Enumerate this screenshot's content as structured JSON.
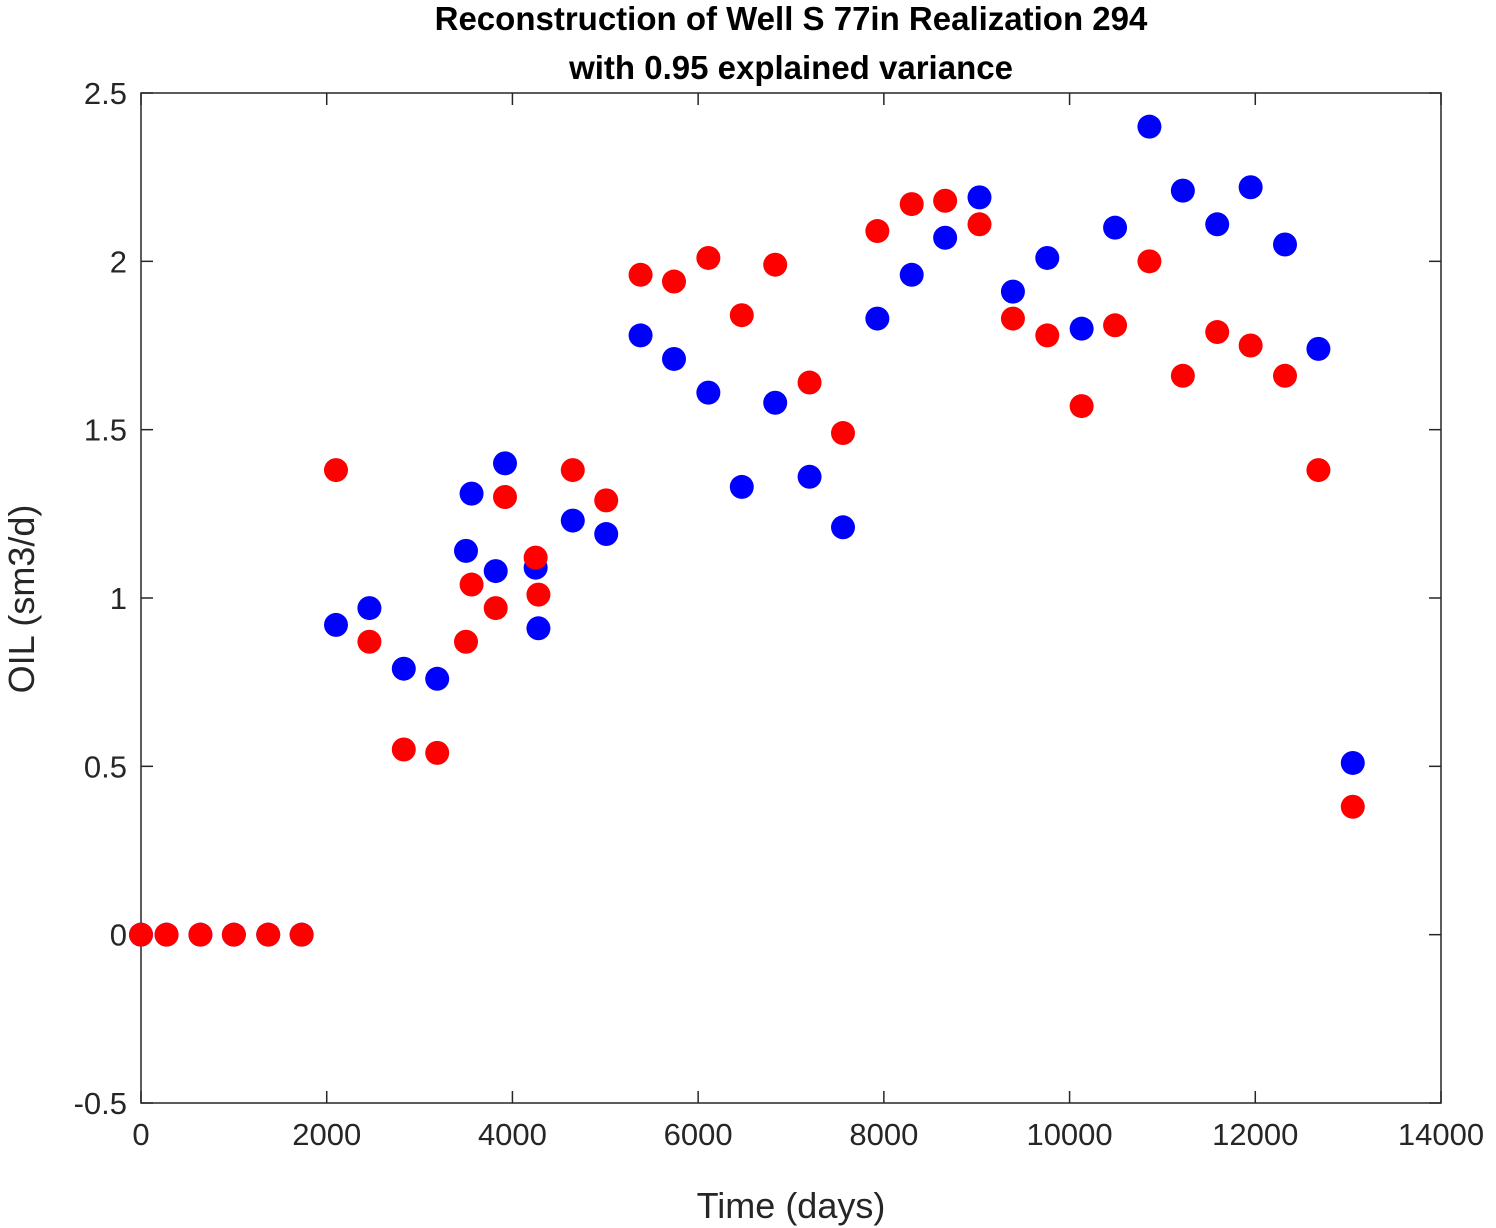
{
  "chart_data": {
    "type": "scatter",
    "title_lines": [
      "Reconstruction of Well S 77in Realization 294",
      "with 0.95 explained variance"
    ],
    "xlabel": "Time (days)",
    "ylabel": "OIL (sm3/d)",
    "xlim": [
      0,
      14000
    ],
    "ylim": [
      -0.5,
      2.5
    ],
    "xticks": [
      0,
      2000,
      4000,
      6000,
      8000,
      10000,
      12000,
      14000
    ],
    "yticks": [
      -0.5,
      0,
      0.5,
      1,
      1.5,
      2,
      2.5
    ],
    "xtick_labels": [
      "0",
      "2000",
      "4000",
      "6000",
      "8000",
      "10000",
      "12000",
      "14000"
    ],
    "ytick_labels": [
      "-0.5",
      "0",
      "0.5",
      "1",
      "1.5",
      "2",
      "2.5"
    ],
    "grid": false,
    "box": true,
    "series": [
      {
        "color": "#0000ff",
        "points": [
          [
            0,
            0
          ],
          [
            275,
            0
          ],
          [
            640,
            0
          ],
          [
            1000,
            0
          ],
          [
            1370,
            0
          ],
          [
            1730,
            0
          ],
          [
            2100,
            0.92
          ],
          [
            2460,
            0.97
          ],
          [
            2830,
            0.79
          ],
          [
            3190,
            0.76
          ],
          [
            3500,
            1.14
          ],
          [
            3560,
            1.31
          ],
          [
            3820,
            1.08
          ],
          [
            3920,
            1.4
          ],
          [
            4250,
            1.09
          ],
          [
            4280,
            0.91
          ],
          [
            4650,
            1.23
          ],
          [
            5010,
            1.19
          ],
          [
            5380,
            1.78
          ],
          [
            5740,
            1.71
          ],
          [
            6110,
            1.61
          ],
          [
            6470,
            1.33
          ],
          [
            6830,
            1.58
          ],
          [
            7200,
            1.36
          ],
          [
            7560,
            1.21
          ],
          [
            7930,
            1.83
          ],
          [
            8300,
            1.96
          ],
          [
            8660,
            2.07
          ],
          [
            9030,
            2.19
          ],
          [
            9390,
            1.91
          ],
          [
            9760,
            2.01
          ],
          [
            10130,
            1.8
          ],
          [
            10490,
            2.1
          ],
          [
            10860,
            2.4
          ],
          [
            11220,
            2.21
          ],
          [
            11590,
            2.11
          ],
          [
            11950,
            2.22
          ],
          [
            12320,
            2.05
          ],
          [
            12680,
            1.74
          ],
          [
            13050,
            0.51
          ]
        ]
      },
      {
        "color": "#ff0000",
        "points": [
          [
            0,
            0
          ],
          [
            275,
            0
          ],
          [
            640,
            0
          ],
          [
            1000,
            0
          ],
          [
            1370,
            0
          ],
          [
            1730,
            0
          ],
          [
            2100,
            1.38
          ],
          [
            2460,
            0.87
          ],
          [
            2830,
            0.55
          ],
          [
            3190,
            0.54
          ],
          [
            3500,
            0.87
          ],
          [
            3560,
            1.04
          ],
          [
            3820,
            0.97
          ],
          [
            3920,
            1.3
          ],
          [
            4250,
            1.12
          ],
          [
            4280,
            1.01
          ],
          [
            4650,
            1.38
          ],
          [
            5010,
            1.29
          ],
          [
            5380,
            1.96
          ],
          [
            5740,
            1.94
          ],
          [
            6110,
            2.01
          ],
          [
            6470,
            1.84
          ],
          [
            6830,
            1.99
          ],
          [
            7200,
            1.64
          ],
          [
            7560,
            1.49
          ],
          [
            7930,
            2.09
          ],
          [
            8300,
            2.17
          ],
          [
            8660,
            2.18
          ],
          [
            9030,
            2.11
          ],
          [
            9390,
            1.83
          ],
          [
            9760,
            1.78
          ],
          [
            10130,
            1.57
          ],
          [
            10490,
            1.81
          ],
          [
            10860,
            2.0
          ],
          [
            11220,
            1.66
          ],
          [
            11590,
            1.79
          ],
          [
            11950,
            1.75
          ],
          [
            12320,
            1.66
          ],
          [
            12680,
            1.38
          ],
          [
            13050,
            0.38
          ]
        ]
      }
    ]
  }
}
